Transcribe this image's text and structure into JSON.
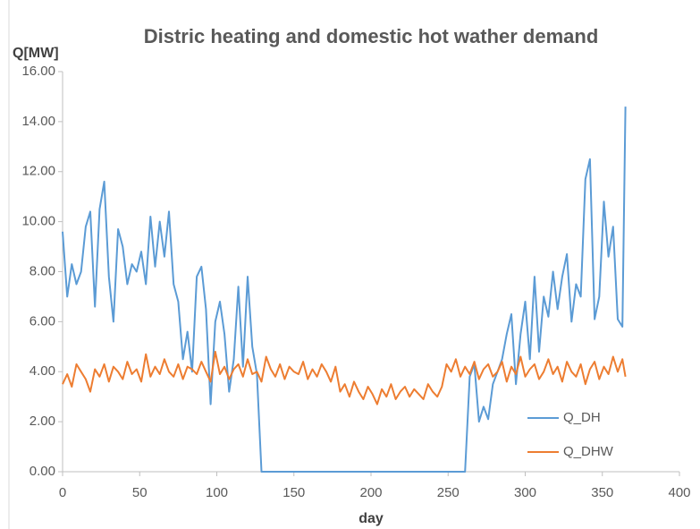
{
  "chart_data": {
    "type": "line",
    "title": "Distric heating and domestic hot wather demand",
    "y_label": "Q[MW]",
    "x_label": "day",
    "x": [
      0,
      3,
      6,
      9,
      12,
      15,
      18,
      21,
      24,
      27,
      30,
      33,
      36,
      39,
      42,
      45,
      48,
      51,
      54,
      57,
      60,
      63,
      66,
      69,
      72,
      75,
      78,
      81,
      84,
      87,
      90,
      93,
      96,
      99,
      102,
      105,
      108,
      111,
      114,
      117,
      120,
      123,
      126,
      129,
      132,
      135,
      138,
      141,
      144,
      147,
      150,
      153,
      156,
      159,
      162,
      165,
      168,
      171,
      174,
      177,
      180,
      183,
      186,
      189,
      192,
      195,
      198,
      201,
      204,
      207,
      210,
      213,
      216,
      219,
      222,
      225,
      228,
      231,
      234,
      237,
      240,
      243,
      246,
      249,
      252,
      255,
      258,
      261,
      264,
      267,
      270,
      273,
      276,
      279,
      282,
      285,
      288,
      291,
      294,
      297,
      300,
      303,
      306,
      309,
      312,
      315,
      318,
      321,
      324,
      327,
      330,
      333,
      336,
      339,
      342,
      345,
      348,
      351,
      354,
      357,
      360,
      363,
      365
    ],
    "series": [
      {
        "name": "Q_DH",
        "color": "#5b9bd5",
        "values": [
          9.6,
          7.0,
          8.3,
          7.5,
          8.0,
          9.8,
          10.4,
          6.6,
          10.5,
          11.6,
          7.8,
          6.0,
          9.7,
          9.0,
          7.5,
          8.3,
          8.0,
          8.8,
          7.5,
          10.2,
          8.2,
          10.0,
          8.6,
          10.4,
          7.5,
          6.8,
          4.5,
          5.6,
          4.0,
          7.8,
          8.2,
          6.5,
          2.7,
          6.0,
          6.8,
          5.5,
          3.2,
          4.5,
          7.4,
          4.2,
          7.8,
          5.0,
          3.9,
          0,
          0,
          0,
          0,
          0,
          0,
          0,
          0,
          0,
          0,
          0,
          0,
          0,
          0,
          0,
          0,
          0,
          0,
          0,
          0,
          0,
          0,
          0,
          0,
          0,
          0,
          0,
          0,
          0,
          0,
          0,
          0,
          0,
          0,
          0,
          0,
          0,
          0,
          0,
          0,
          0,
          0,
          0,
          0,
          0,
          3.8,
          4.3,
          2.0,
          2.6,
          2.1,
          3.5,
          4.0,
          4.5,
          5.5,
          6.3,
          3.5,
          5.5,
          6.8,
          4.5,
          7.8,
          4.8,
          7.0,
          6.2,
          8.0,
          6.5,
          7.8,
          8.7,
          6.0,
          7.5,
          7.0,
          11.7,
          12.5,
          6.1,
          7.0,
          10.8,
          8.6,
          9.8,
          6.1,
          5.8,
          14.6
        ]
      },
      {
        "name": "Q_DHW",
        "color": "#ed7d31",
        "values": [
          3.5,
          3.9,
          3.4,
          4.3,
          4.0,
          3.7,
          3.2,
          4.1,
          3.8,
          4.3,
          3.6,
          4.2,
          4.0,
          3.7,
          4.4,
          3.9,
          4.1,
          3.6,
          4.7,
          3.8,
          4.2,
          3.9,
          4.5,
          4.0,
          3.8,
          4.3,
          3.7,
          4.2,
          4.1,
          3.9,
          4.4,
          4.0,
          3.6,
          4.8,
          3.9,
          4.2,
          3.7,
          4.1,
          4.3,
          3.8,
          4.5,
          3.9,
          4.0,
          3.6,
          4.6,
          4.1,
          3.8,
          4.3,
          3.7,
          4.2,
          4.0,
          3.9,
          4.4,
          3.7,
          4.1,
          3.8,
          4.3,
          4.0,
          3.6,
          4.2,
          3.2,
          3.5,
          3.0,
          3.6,
          3.2,
          2.9,
          3.4,
          3.1,
          2.7,
          3.3,
          3.0,
          3.5,
          2.9,
          3.2,
          3.4,
          3.0,
          3.3,
          3.1,
          2.9,
          3.5,
          3.2,
          3.0,
          3.4,
          4.3,
          4.0,
          4.5,
          3.8,
          4.2,
          3.9,
          4.4,
          3.7,
          4.1,
          4.3,
          3.8,
          4.0,
          4.4,
          3.6,
          4.2,
          3.9,
          4.6,
          3.8,
          4.1,
          4.3,
          3.7,
          4.0,
          4.5,
          3.9,
          4.2,
          3.6,
          4.4,
          4.0,
          3.8,
          4.3,
          3.5,
          4.1,
          4.4,
          3.7,
          4.2,
          3.9,
          4.6,
          4.0,
          4.5,
          3.8
        ]
      }
    ],
    "xlim": [
      0,
      400
    ],
    "xticks": [
      0,
      50,
      100,
      150,
      200,
      250,
      300,
      350,
      400
    ],
    "ylim": [
      0,
      16
    ],
    "yticks": [
      {
        "value": 0,
        "label": "0.00"
      },
      {
        "value": 2,
        "label": "2.00"
      },
      {
        "value": 4,
        "label": "4.00"
      },
      {
        "value": 6,
        "label": "6.00"
      },
      {
        "value": 8,
        "label": "8.00"
      },
      {
        "value": 10,
        "label": "10.00"
      },
      {
        "value": 12,
        "label": "12.00"
      },
      {
        "value": 14,
        "label": "14.00"
      },
      {
        "value": 16,
        "label": "16.00"
      }
    ],
    "grid": false,
    "legend": "lower right"
  }
}
